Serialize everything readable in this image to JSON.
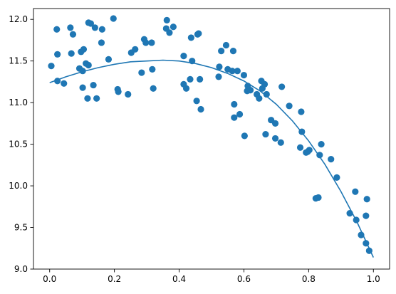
{
  "chart_data": {
    "type": "scatter",
    "title": "",
    "xlabel": "",
    "ylabel": "",
    "xlim": [
      -0.05,
      1.05
    ],
    "ylim": [
      9.0,
      12.13
    ],
    "x_ticks": [
      0.0,
      0.2,
      0.4,
      0.6,
      0.8,
      1.0
    ],
    "x_tick_labels": [
      "0.0",
      "0.2",
      "0.4",
      "0.6",
      "0.8",
      "1.0"
    ],
    "y_ticks": [
      9.0,
      9.5,
      10.0,
      10.5,
      11.0,
      11.5,
      12.0
    ],
    "y_tick_labels": [
      "9.0",
      "9.5",
      "10.0",
      "10.5",
      "11.0",
      "11.5",
      "12.0"
    ],
    "grid": false,
    "legend": "none",
    "color": "#1f77b4",
    "series": [
      {
        "type": "scatter",
        "points": [
          [
            0.005,
            11.44
          ],
          [
            0.022,
            11.88
          ],
          [
            0.024,
            11.58
          ],
          [
            0.024,
            11.26
          ],
          [
            0.044,
            11.23
          ],
          [
            0.064,
            11.9
          ],
          [
            0.067,
            11.59
          ],
          [
            0.072,
            11.82
          ],
          [
            0.092,
            11.41
          ],
          [
            0.097,
            11.61
          ],
          [
            0.102,
            11.38
          ],
          [
            0.102,
            11.18
          ],
          [
            0.105,
            11.64
          ],
          [
            0.112,
            11.47
          ],
          [
            0.117,
            11.05
          ],
          [
            0.12,
            11.45
          ],
          [
            0.12,
            11.96
          ],
          [
            0.127,
            11.95
          ],
          [
            0.135,
            11.21
          ],
          [
            0.14,
            11.9
          ],
          [
            0.145,
            11.05
          ],
          [
            0.16,
            11.72
          ],
          [
            0.162,
            11.88
          ],
          [
            0.182,
            11.52
          ],
          [
            0.197,
            12.01
          ],
          [
            0.21,
            11.16
          ],
          [
            0.212,
            11.13
          ],
          [
            0.242,
            11.1
          ],
          [
            0.252,
            11.6
          ],
          [
            0.264,
            11.64
          ],
          [
            0.284,
            11.36
          ],
          [
            0.292,
            11.76
          ],
          [
            0.297,
            11.72
          ],
          [
            0.315,
            11.72
          ],
          [
            0.317,
            11.4
          ],
          [
            0.32,
            11.17
          ],
          [
            0.36,
            11.89
          ],
          [
            0.362,
            11.99
          ],
          [
            0.37,
            11.84
          ],
          [
            0.382,
            11.91
          ],
          [
            0.414,
            11.56
          ],
          [
            0.414,
            11.22
          ],
          [
            0.422,
            11.17
          ],
          [
            0.434,
            11.28
          ],
          [
            0.437,
            11.78
          ],
          [
            0.44,
            11.5
          ],
          [
            0.454,
            11.02
          ],
          [
            0.457,
            11.82
          ],
          [
            0.46,
            11.83
          ],
          [
            0.464,
            11.28
          ],
          [
            0.467,
            10.92
          ],
          [
            0.522,
            11.31
          ],
          [
            0.524,
            11.43
          ],
          [
            0.53,
            11.62
          ],
          [
            0.545,
            11.69
          ],
          [
            0.55,
            11.4
          ],
          [
            0.564,
            11.38
          ],
          [
            0.567,
            11.62
          ],
          [
            0.57,
            10.98
          ],
          [
            0.57,
            10.82
          ],
          [
            0.58,
            11.38
          ],
          [
            0.587,
            10.86
          ],
          [
            0.6,
            11.33
          ],
          [
            0.602,
            10.6
          ],
          [
            0.61,
            11.14
          ],
          [
            0.612,
            11.2
          ],
          [
            0.62,
            11.15
          ],
          [
            0.64,
            11.1
          ],
          [
            0.647,
            11.05
          ],
          [
            0.654,
            11.26
          ],
          [
            0.657,
            11.17
          ],
          [
            0.664,
            11.22
          ],
          [
            0.667,
            10.62
          ],
          [
            0.67,
            11.1
          ],
          [
            0.684,
            10.79
          ],
          [
            0.697,
            10.75
          ],
          [
            0.697,
            10.57
          ],
          [
            0.714,
            10.52
          ],
          [
            0.717,
            11.19
          ],
          [
            0.74,
            10.96
          ],
          [
            0.774,
            10.46
          ],
          [
            0.777,
            10.89
          ],
          [
            0.779,
            10.65
          ],
          [
            0.792,
            10.4
          ],
          [
            0.797,
            10.41
          ],
          [
            0.802,
            10.43
          ],
          [
            0.822,
            9.85
          ],
          [
            0.83,
            9.86
          ],
          [
            0.834,
            10.37
          ],
          [
            0.839,
            10.5
          ],
          [
            0.869,
            10.32
          ],
          [
            0.887,
            10.1
          ],
          [
            0.927,
            9.67
          ],
          [
            0.944,
            9.93
          ],
          [
            0.947,
            9.59
          ],
          [
            0.962,
            9.41
          ],
          [
            0.977,
            9.64
          ],
          [
            0.977,
            9.31
          ],
          [
            0.98,
            9.84
          ],
          [
            0.987,
            9.22
          ]
        ]
      },
      {
        "type": "line",
        "x": [
          0.0,
          0.05,
          0.1,
          0.15,
          0.2,
          0.25,
          0.3,
          0.35,
          0.4,
          0.45,
          0.5,
          0.55,
          0.6,
          0.65,
          0.7,
          0.75,
          0.8,
          0.85,
          0.9,
          0.95,
          1.0
        ],
        "y": [
          11.24,
          11.31,
          11.37,
          11.42,
          11.46,
          11.49,
          11.5,
          11.51,
          11.5,
          11.47,
          11.42,
          11.35,
          11.26,
          11.14,
          10.98,
          10.78,
          10.54,
          10.26,
          9.93,
          9.56,
          9.14
        ]
      }
    ]
  }
}
